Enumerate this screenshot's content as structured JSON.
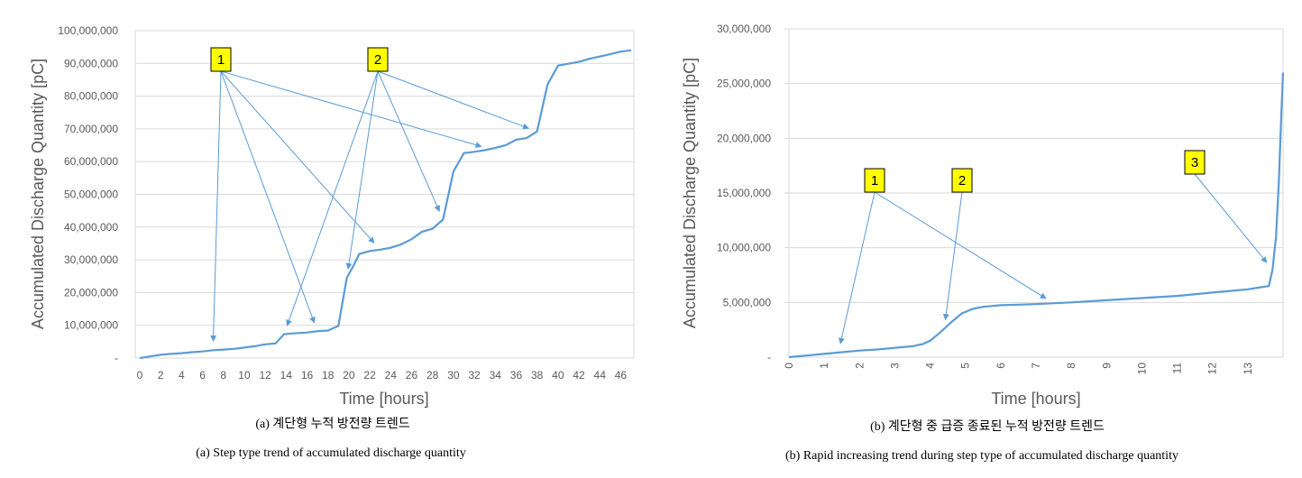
{
  "chart_data": [
    {
      "type": "line",
      "xlabel": "Time [hours]",
      "ylabel": "Accumulated Discharge Quantity [pC]",
      "ylim": [
        0,
        100000000
      ],
      "xlim": [
        0,
        47
      ],
      "y_ticks": [
        "-",
        "10,000,000",
        "20,000,000",
        "30,000,000",
        "40,000,000",
        "50,000,000",
        "60,000,000",
        "70,000,000",
        "80,000,000",
        "90,000,000",
        "100,000,000"
      ],
      "x_ticks": [
        "0",
        "2",
        "4",
        "6",
        "8",
        "10",
        "12",
        "14",
        "16",
        "18",
        "20",
        "22",
        "24",
        "26",
        "28",
        "30",
        "32",
        "34",
        "36",
        "38",
        "40",
        "42",
        "44",
        "46"
      ],
      "grid": "horizontal",
      "line_color": "#5b9bd5",
      "series": [
        {
          "x": [
            0,
            1,
            2,
            3,
            4,
            5,
            6,
            7,
            8,
            9,
            10,
            11,
            12,
            13,
            13.8,
            14.5,
            16,
            17,
            18,
            19,
            19.8,
            20.4,
            21,
            22,
            23,
            24,
            25,
            26,
            27,
            28,
            29,
            30,
            31,
            32,
            33,
            34,
            35,
            36,
            37,
            38,
            39,
            40,
            41,
            42,
            43,
            44,
            45,
            46,
            47
          ],
          "y": [
            0,
            500000,
            1000000,
            1300000,
            1500000,
            1800000,
            2000000,
            2400000,
            2600000,
            2800000,
            3200000,
            3600000,
            4200000,
            4500000,
            7300000,
            7500000,
            7800000,
            8200000,
            8400000,
            9800000,
            24500000,
            28000000,
            31800000,
            32700000,
            33100000,
            33700000,
            34700000,
            36300000,
            38600000,
            39500000,
            42300000,
            57000000,
            62600000,
            63000000,
            63500000,
            64200000,
            65000000,
            66700000,
            67200000,
            69200000,
            83500000,
            89300000,
            89900000,
            90500000,
            91400000,
            92100000,
            92800000,
            93600000,
            94000000
          ]
        }
      ],
      "callouts": [
        {
          "label": "1",
          "targets_x": [
            7,
            17,
            23,
            33.5
          ]
        },
        {
          "label": "2",
          "targets_x": [
            13.8,
            19.8,
            29,
            38
          ]
        }
      ]
    },
    {
      "type": "line",
      "xlabel": "Time [hours]",
      "ylabel": "Accumulated Discharge Quantity [pC]",
      "ylim": [
        0,
        30000000
      ],
      "xlim": [
        0,
        14
      ],
      "y_ticks": [
        "-",
        "5,000,000",
        "10,000,000",
        "15,000,000",
        "20,000,000",
        "25,000,000",
        "30,000,000"
      ],
      "x_ticks": [
        "0",
        "1",
        "2",
        "3",
        "4",
        "5",
        "6",
        "7",
        "8",
        "9",
        "10",
        "11",
        "12",
        "13"
      ],
      "grid": "horizontal",
      "line_color": "#5b9bd5",
      "series": [
        {
          "x": [
            0,
            0.5,
            1,
            1.5,
            2,
            2.5,
            3,
            3.5,
            3.8,
            4.0,
            4.3,
            4.6,
            4.9,
            5.2,
            5.5,
            6,
            6.5,
            7,
            8,
            9,
            10,
            11,
            12,
            12.5,
            13,
            13.4,
            13.6,
            13.7,
            13.8,
            13.88,
            13.95,
            14
          ],
          "y": [
            0,
            150000,
            300000,
            450000,
            600000,
            700000,
            850000,
            1000000,
            1200000,
            1500000,
            2300000,
            3200000,
            4000000,
            4400000,
            4600000,
            4750000,
            4800000,
            4850000,
            5000000,
            5200000,
            5400000,
            5600000,
            5900000,
            6050000,
            6200000,
            6400000,
            6500000,
            8000000,
            11000000,
            16000000,
            22000000,
            26000000
          ]
        }
      ],
      "callouts": [
        {
          "label": "1",
          "targets_x": [
            1.4,
            7.5
          ]
        },
        {
          "label": "2",
          "targets_x": [
            4.4
          ]
        },
        {
          "label": "3",
          "targets_x": [
            13.7
          ]
        }
      ]
    }
  ],
  "captions": {
    "a_korean": "(a) 계단형 누적 방전량 트렌드",
    "a_english": "(a) Step type trend of accumulated discharge quantity",
    "b_korean": "(b) 계단형 중 급증 종료된 누적 방전량 트렌드",
    "b_english": "(b) Rapid increasing trend during step type of accumulated discharge quantity"
  }
}
